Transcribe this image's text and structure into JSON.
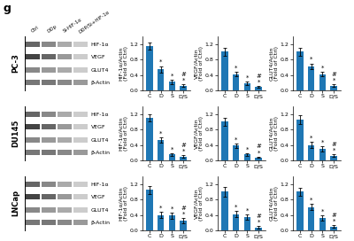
{
  "title": "g",
  "chart_data": [
    {
      "type": "blot",
      "title": "PC-3",
      "categories": [
        "Ctrl",
        "DDp",
        "Si-HIF-1α",
        "DDP/Si+HIF-1α"
      ],
      "series": [
        {
          "name": "HIF-1α",
          "colors": [
            "#666666",
            "#888888",
            "#aaaaaa",
            "#cccccc"
          ]
        },
        {
          "name": "VEGF",
          "colors": [
            "#444444",
            "#666666",
            "#999999",
            "#cccccc"
          ]
        },
        {
          "name": "GLUT4",
          "colors": [
            "#888888",
            "#999999",
            "#aaaaaa",
            "#cccccc"
          ]
        },
        {
          "name": "β-Actin",
          "colors": [
            "#777777",
            "#777777",
            "#888888",
            "#999999"
          ]
        }
      ]
    },
    {
      "type": "bar",
      "categories": [
        "C",
        "D",
        "S",
        "D/S"
      ],
      "values": [
        1.15,
        0.55,
        0.22,
        0.12
      ],
      "errors": [
        0.1,
        0.08,
        0.05,
        0.03
      ],
      "y_label": "HIF-1α/Actin\n(Fold of Ctrl)",
      "ylim": [
        0,
        1.4
      ],
      "yticks": [
        {
          "value": 0,
          "label": "0.0"
        },
        0.4,
        0.8,
        1.2
      ],
      "annotations": [
        {
          "category": "D",
          "text": "*"
        },
        {
          "category": "S",
          "text": "*"
        },
        {
          "category": "D/S",
          "text": "*"
        },
        {
          "category": "D/S",
          "text": "#"
        }
      ]
    },
    {
      "type": "bar",
      "categories": [
        "C",
        "D",
        "S",
        "D/S"
      ],
      "values": [
        1.0,
        0.42,
        0.18,
        0.09
      ],
      "errors": [
        0.1,
        0.06,
        0.04,
        0.02
      ],
      "y_label": "VEGF/Actin\n(Fold of Ctrl)",
      "ylim": [
        0,
        1.4
      ],
      "yticks": [
        {
          "value": 0,
          "label": "0.0"
        },
        0.4,
        0.8,
        1.2
      ],
      "annotations": [
        {
          "category": "D",
          "text": "*"
        },
        {
          "category": "S",
          "text": "*"
        },
        {
          "category": "D/S",
          "text": "*"
        },
        {
          "category": "D/S",
          "text": "#"
        }
      ]
    },
    {
      "type": "bar",
      "categories": [
        "C",
        "D",
        "S",
        "D/S"
      ],
      "values": [
        1.0,
        0.62,
        0.42,
        0.12
      ],
      "errors": [
        0.1,
        0.08,
        0.06,
        0.03
      ],
      "y_label": "GLUT4/Actin\n(Fold of Ctrl)",
      "ylim": [
        0,
        1.4
      ],
      "yticks": [
        {
          "value": 0,
          "label": "0.0"
        },
        0.4,
        0.8,
        1.2
      ],
      "annotations": [
        {
          "category": "D",
          "text": "*"
        },
        {
          "category": "S",
          "text": "*"
        },
        {
          "category": "D/S",
          "text": "*"
        },
        {
          "category": "D/S",
          "text": "#"
        }
      ]
    },
    {
      "type": "blot",
      "title": "DU145",
      "categories": [
        null,
        null,
        null,
        null
      ],
      "series": [
        {
          "name": "HIF-1α",
          "colors": [
            "#666666",
            "#888888",
            "#aaaaaa",
            "#cccccc"
          ]
        },
        {
          "name": "VEGF",
          "colors": [
            "#444444",
            "#666666",
            "#999999",
            "#cccccc"
          ]
        },
        {
          "name": "GLUT4",
          "colors": [
            "#888888",
            "#999999",
            "#aaaaaa",
            "#cccccc"
          ]
        },
        {
          "name": "β-Actin",
          "colors": [
            "#777777",
            "#777777",
            "#888888",
            "#999999"
          ]
        }
      ]
    },
    {
      "type": "bar",
      "categories": [
        "C",
        "D",
        "S",
        "D/S"
      ],
      "values": [
        1.1,
        0.52,
        0.15,
        0.1
      ],
      "errors": [
        0.1,
        0.07,
        0.04,
        0.03
      ],
      "y_label": "HIF-1α/Actin\n(Fold of Ctrl)",
      "ylim": [
        0,
        1.4
      ],
      "yticks": [
        {
          "value": 0,
          "label": "0.0"
        },
        0.4,
        0.8,
        1.2
      ],
      "annotations": [
        {
          "category": "D",
          "text": "*"
        },
        {
          "category": "S",
          "text": "*"
        },
        {
          "category": "D/S",
          "text": "*"
        },
        {
          "category": "D/S",
          "text": "#"
        }
      ]
    },
    {
      "type": "bar",
      "categories": [
        "C",
        "D",
        "S",
        "D/S"
      ],
      "values": [
        1.0,
        0.38,
        0.15,
        0.08
      ],
      "errors": [
        0.1,
        0.06,
        0.04,
        0.02
      ],
      "y_label": "VEGF/Actin\n(Fold of Ctrl)",
      "ylim": [
        0,
        1.4
      ],
      "yticks": [
        {
          "value": 0,
          "label": "0.0"
        },
        0.4,
        0.8,
        1.2
      ],
      "annotations": [
        {
          "category": "D",
          "text": "*"
        },
        {
          "category": "S",
          "text": "*"
        },
        {
          "category": "D/S",
          "text": "*"
        },
        {
          "category": "D/S",
          "text": "#"
        }
      ]
    },
    {
      "type": "bar",
      "categories": [
        "C",
        "D",
        "S",
        "D/S"
      ],
      "values": [
        1.05,
        0.4,
        0.3,
        0.12
      ],
      "errors": [
        0.12,
        0.08,
        0.06,
        0.03
      ],
      "y_label": "GLUT4/Actin\n(Fold of Ctrl)",
      "ylim": [
        0,
        1.4
      ],
      "yticks": [
        {
          "value": 0,
          "label": "0.0"
        },
        0.4,
        0.8,
        1.2
      ],
      "annotations": [
        {
          "category": "D",
          "text": "*"
        },
        {
          "category": "S",
          "text": "*"
        },
        {
          "category": "D/S",
          "text": "*"
        },
        {
          "category": "D/S",
          "text": "#"
        }
      ]
    },
    {
      "type": "blot",
      "title": "LNCap",
      "categories": [
        null,
        null,
        null,
        null
      ],
      "series": [
        {
          "name": "HIF-1α",
          "colors": [
            "#666666",
            "#888888",
            "#aaaaaa",
            "#cccccc"
          ]
        },
        {
          "name": "VEGF",
          "colors": [
            "#444444",
            "#666666",
            "#999999",
            "#cccccc"
          ]
        },
        {
          "name": "GLUT4",
          "colors": [
            "#888888",
            "#999999",
            "#aaaaaa",
            "#cccccc"
          ]
        },
        {
          "name": "β-Actin",
          "colors": [
            "#777777",
            "#777777",
            "#888888",
            "#999999"
          ]
        }
      ]
    },
    {
      "type": "bar",
      "categories": [
        "C",
        "D",
        "S",
        "D/S"
      ],
      "values": [
        1.05,
        0.4,
        0.38,
        0.25
      ],
      "errors": [
        0.1,
        0.08,
        0.08,
        0.06
      ],
      "y_label": "HIF-1α/Actin\n(Fold of Ctrl)",
      "ylim": [
        0,
        1.4
      ],
      "yticks": [
        {
          "value": 0,
          "label": "0.0"
        },
        0.4,
        0.8,
        1.2
      ],
      "annotations": [
        {
          "category": "D",
          "text": "*"
        },
        {
          "category": "S",
          "text": "*"
        },
        {
          "category": "D/S",
          "text": "*"
        },
        {
          "category": "D/S",
          "text": "#"
        }
      ]
    },
    {
      "type": "bar",
      "categories": [
        "C",
        "D",
        "S",
        "D/S"
      ],
      "values": [
        1.0,
        0.42,
        0.35,
        0.08
      ],
      "errors": [
        0.12,
        0.08,
        0.07,
        0.03
      ],
      "y_label": "VEGF/Actin\n(Fold of Ctrl)",
      "ylim": [
        0,
        1.4
      ],
      "yticks": [
        {
          "value": 0,
          "label": "0.0"
        },
        0.4,
        0.8,
        1.2
      ],
      "annotations": [
        {
          "category": "D",
          "text": "*"
        },
        {
          "category": "S",
          "text": "*"
        },
        {
          "category": "D/S",
          "text": "*"
        },
        {
          "category": "D/S",
          "text": "#"
        }
      ]
    },
    {
      "type": "bar",
      "categories": [
        "C",
        "D",
        "S",
        "D/S"
      ],
      "values": [
        1.0,
        0.6,
        0.32,
        0.1
      ],
      "errors": [
        0.1,
        0.08,
        0.06,
        0.03
      ],
      "y_label": "GLUT4/Actin\n(Fold of Ctrl)",
      "ylim": [
        0,
        1.4
      ],
      "yticks": [
        {
          "value": 0,
          "label": "0.0"
        },
        0.4,
        0.8,
        1.2
      ],
      "annotations": [
        {
          "category": "D",
          "text": "*"
        },
        {
          "category": "S",
          "text": "*"
        },
        {
          "category": "D/S",
          "text": "*"
        },
        {
          "category": "D/S",
          "text": "#"
        }
      ]
    }
  ]
}
